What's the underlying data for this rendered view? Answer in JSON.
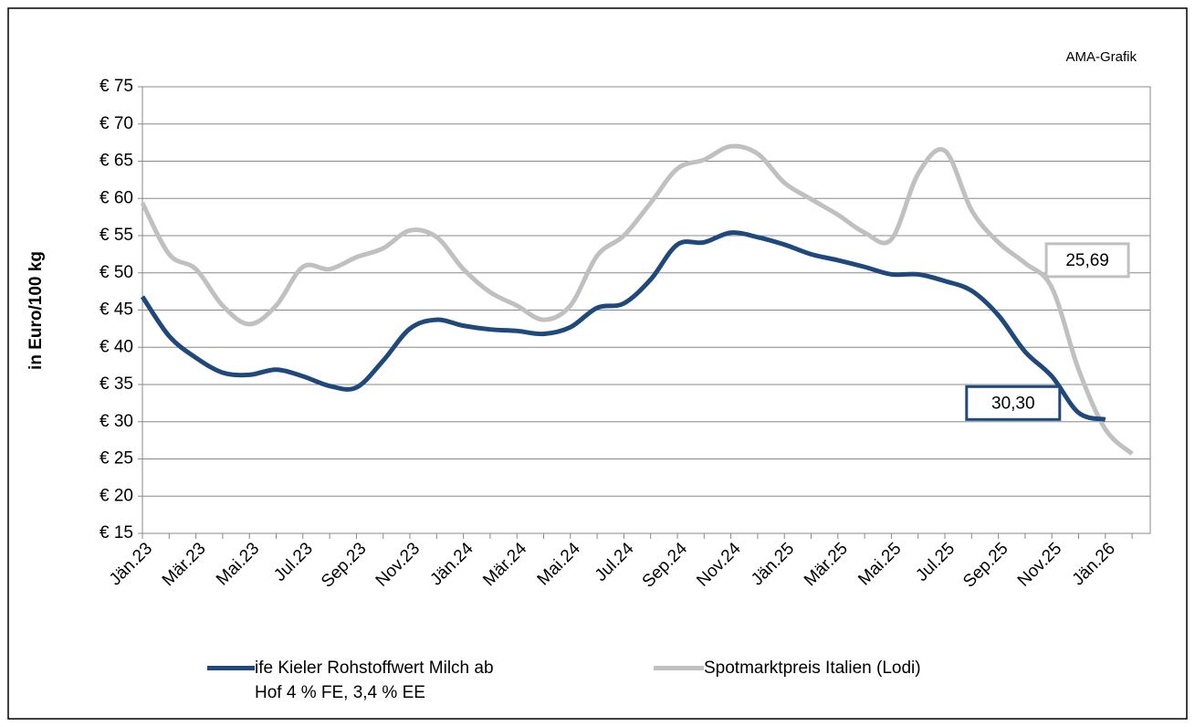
{
  "chart_data": {
    "type": "line",
    "annotation": "AMA-Grafik",
    "ylabel": "in Euro/100 kg",
    "categories": [
      "Jän.23",
      null,
      "Mär.23",
      null,
      "Mai.23",
      null,
      "Jul.23",
      null,
      "Sep.23",
      null,
      "Nov.23",
      null,
      "Jän.24",
      null,
      "Mär.24",
      null,
      "Mai.24",
      null,
      "Jul.24",
      null,
      "Sep.24",
      null,
      "Nov.24",
      null,
      "Jän.25",
      null,
      "Mär.25",
      null,
      "Mai.25",
      null,
      "Jul.25",
      null,
      "Sep.25",
      null,
      "Nov.25",
      null,
      "Jän.26",
      null
    ],
    "series": [
      {
        "name": "ife Kieler Rohstoffwert Milch ab Hof 4 % FE, 3,4 % EE",
        "color": "#1f497d",
        "values": [
          46.8,
          41.5,
          38.6,
          36.6,
          36.3,
          37.0,
          36.1,
          34.8,
          34.6,
          38.2,
          42.5,
          43.7,
          42.9,
          42.4,
          42.2,
          41.8,
          42.7,
          45.3,
          45.9,
          49.1,
          53.8,
          54.1,
          55.4,
          54.8,
          53.8,
          52.5,
          51.7,
          50.8,
          49.8,
          49.8,
          48.9,
          47.6,
          44.3,
          39.4,
          36.1,
          31.2,
          30.3,
          null
        ],
        "value_labels": [
          null,
          null,
          null,
          null,
          null,
          null,
          null,
          null,
          null,
          null,
          null,
          null,
          null,
          null,
          null,
          null,
          null,
          null,
          null,
          null,
          null,
          null,
          null,
          null,
          null,
          null,
          null,
          null,
          null,
          null,
          null,
          null,
          null,
          null,
          null,
          null,
          "30,30",
          null
        ]
      },
      {
        "name": "Spotmarktpreis Italien (Lodi)",
        "color": "#c0c0c0",
        "values": [
          59.4,
          52.5,
          50.5,
          45.6,
          43.1,
          45.6,
          50.8,
          50.5,
          52.1,
          53.3,
          55.7,
          54.8,
          50.5,
          47.4,
          45.6,
          43.7,
          45.6,
          52.3,
          55.0,
          59.4,
          64.0,
          65.2,
          67.0,
          66.0,
          62.1,
          59.9,
          57.8,
          55.4,
          54.5,
          63.3,
          66.4,
          58.4,
          54.1,
          51.3,
          48.0,
          37.0,
          29.0,
          25.69
        ],
        "value_labels": [
          null,
          null,
          null,
          null,
          null,
          null,
          null,
          null,
          null,
          null,
          null,
          null,
          null,
          null,
          null,
          null,
          null,
          null,
          null,
          null,
          null,
          null,
          null,
          null,
          null,
          null,
          null,
          null,
          null,
          null,
          null,
          null,
          null,
          null,
          null,
          null,
          null,
          "25,69"
        ]
      }
    ],
    "ylim": [
      15,
      75
    ],
    "yticks": [
      {
        "value": 15,
        "label": "€ 15"
      },
      {
        "value": 20,
        "label": "€ 20"
      },
      {
        "value": 25,
        "label": "€ 25"
      },
      {
        "value": 30,
        "label": "€ 30"
      },
      {
        "value": 35,
        "label": "€ 35"
      },
      {
        "value": 40,
        "label": "€ 40"
      },
      {
        "value": 45,
        "label": "€ 45"
      },
      {
        "value": 50,
        "label": "€ 50"
      },
      {
        "value": 55,
        "label": "€ 55"
      },
      {
        "value": 60,
        "label": "€ 60"
      },
      {
        "value": 65,
        "label": "€ 65"
      },
      {
        "value": 70,
        "label": "€ 70"
      },
      {
        "value": 75,
        "label": "€ 75"
      }
    ],
    "grid": true
  }
}
